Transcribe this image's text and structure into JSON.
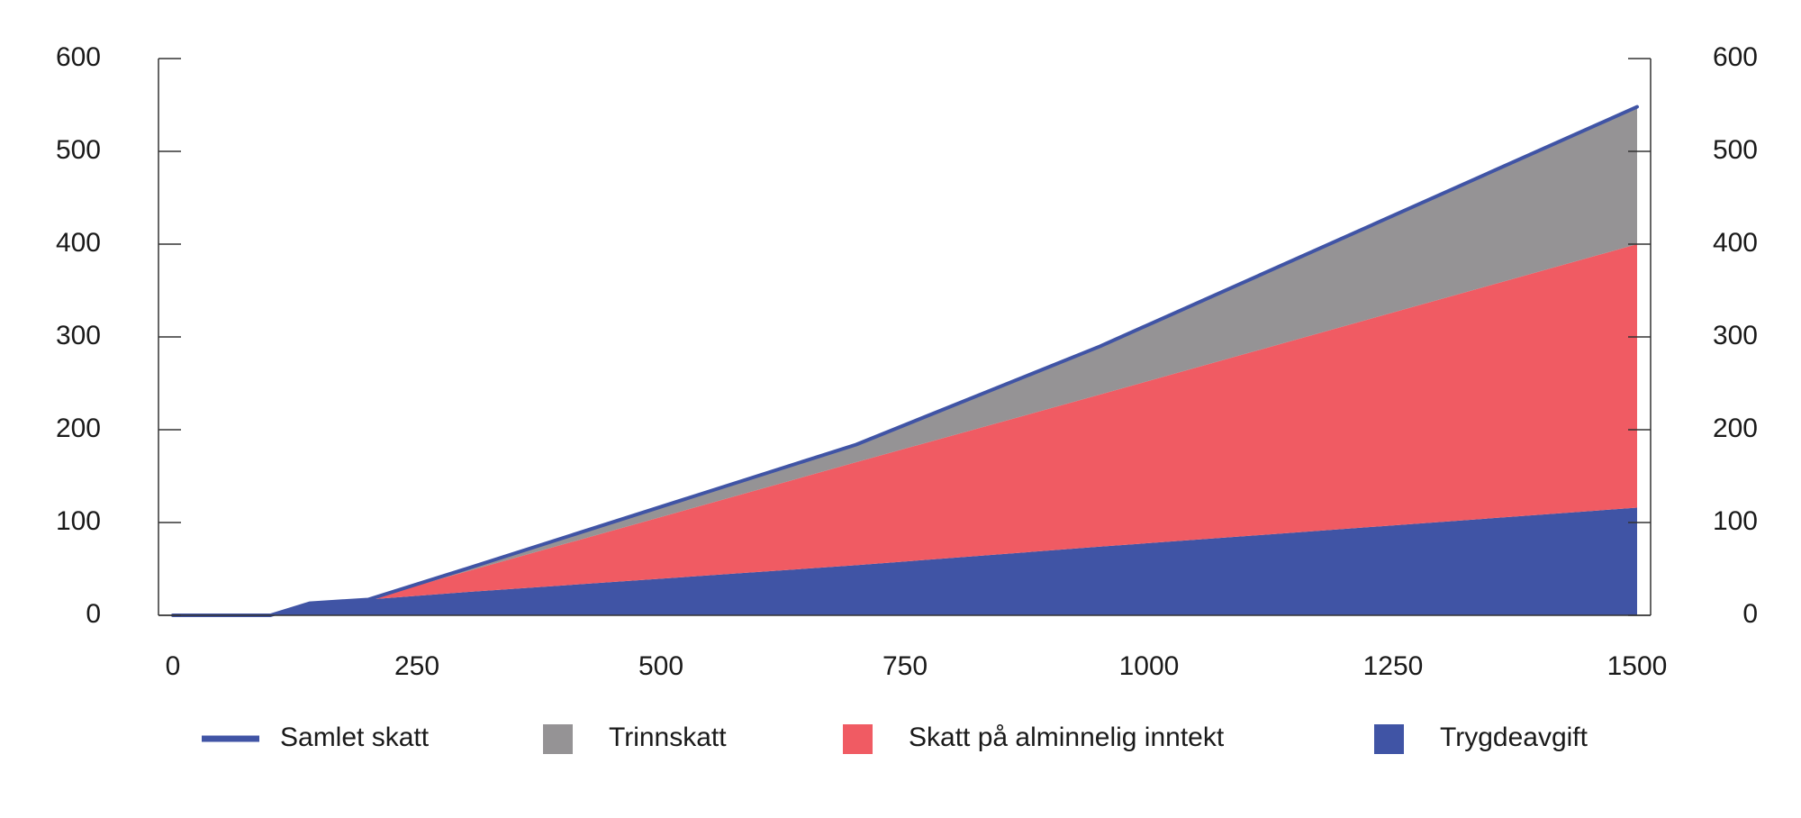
{
  "chart_data": {
    "type": "stacked-area",
    "x": [
      0,
      100,
      140,
      200,
      300,
      700,
      950,
      1500
    ],
    "series": [
      {
        "name": "Trygdeavgift",
        "color": "#4054a5",
        "values": [
          0,
          0,
          13,
          17,
          25,
          54,
          74,
          116
        ]
      },
      {
        "name": "Skatt på alminnelig inntekt",
        "color": "#f05b63",
        "values": [
          0,
          0,
          0,
          0,
          22,
          111,
          164,
          284
        ]
      },
      {
        "name": "Trinnskatt",
        "color": "#959395",
        "values": [
          0,
          0,
          0,
          0,
          3,
          19,
          52,
          148
        ]
      }
    ],
    "line": {
      "name": "Samlet skatt",
      "color": "#4054a5",
      "values": [
        0,
        0,
        13,
        17,
        50,
        184,
        290,
        548
      ]
    },
    "legend_order": [
      "line",
      2,
      1,
      0
    ],
    "xlim": [
      0,
      1500
    ],
    "xticks": [
      0,
      250,
      500,
      750,
      1000,
      1250,
      1500
    ],
    "ylim": [
      0,
      600
    ],
    "yticks": [
      0,
      100,
      200,
      300,
      400,
      500,
      600
    ],
    "y2lim": [
      0,
      600
    ],
    "y2ticks": [
      0,
      100,
      200,
      300,
      400,
      500,
      600
    ],
    "legend": "bottom"
  }
}
